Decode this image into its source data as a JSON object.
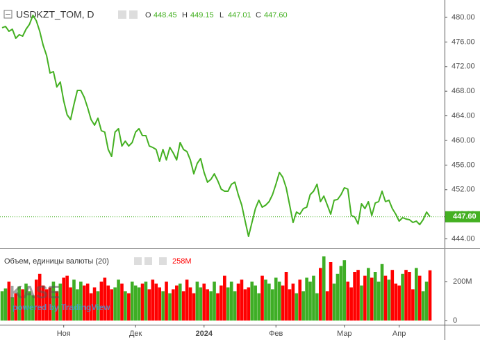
{
  "chart_data": [
    {
      "type": "line",
      "title": "USDKZT_TOM, D",
      "ohlc_labels": [
        "O",
        "H",
        "L",
        "C"
      ],
      "ohlc_values": [
        448.45,
        449.15,
        447.01,
        447.6
      ],
      "ohlc_value_labels": [
        "448.45",
        "449.15",
        "447.01",
        "447.60"
      ],
      "color": "#44b022",
      "values": [
        478.31,
        478.53,
        477.74,
        478.08,
        476.61,
        477.18,
        476.95,
        478.08,
        478.87,
        480.34,
        479.44,
        477.74,
        475.48,
        473.79,
        470.96,
        471.19,
        468.7,
        469.49,
        466.44,
        464.18,
        463.39,
        465.88,
        468.14,
        468.14,
        467.01,
        465.31,
        463.39,
        462.49,
        463.62,
        461.58,
        461.36,
        458.53,
        457.4,
        461.36,
        461.92,
        459.1,
        459.89,
        459.1,
        459.66,
        461.36,
        461.92,
        460.79,
        460.79,
        459.1,
        458.87,
        458.53,
        456.61,
        458.53,
        456.84,
        458.87,
        457.97,
        456.84,
        459.66,
        458.53,
        458.19,
        456.84,
        454.58,
        456.27,
        457.06,
        454.8,
        453.22,
        453.67,
        454.58,
        453.45,
        452.09,
        451.75,
        451.75,
        452.88,
        453.22,
        451.19,
        449.49,
        446.89,
        444.41,
        446.67,
        448.93,
        450.28,
        449.15,
        449.49,
        450.06,
        451.19,
        452.88,
        454.8,
        454.01,
        452.32,
        449.49,
        446.67,
        448.36,
        448.02,
        448.93,
        449.15,
        451.19,
        451.75,
        452.88,
        450.06,
        450.96,
        449.49,
        448.02,
        450.28,
        450.4,
        451.19,
        452.32,
        452.09,
        447.8,
        447.57,
        446.44,
        449.72,
        448.93,
        450.06,
        447.8,
        449.83,
        450.06,
        451.75,
        450.06,
        450.28,
        448.93,
        448.02,
        446.89,
        447.46,
        447.23,
        447.12,
        446.67,
        446.89,
        446.33,
        447.12,
        448.36,
        447.6
      ],
      "ylim": [
        442.71,
        481.92
      ],
      "yticks": [
        {
          "value": 444,
          "label": "444.00"
        },
        {
          "value": 448,
          "label": "448.00"
        },
        {
          "value": 452,
          "label": "452.00"
        },
        {
          "value": 456,
          "label": "456.00"
        },
        {
          "value": 460,
          "label": "460.00"
        },
        {
          "value": 464,
          "label": "464.00"
        },
        {
          "value": 468,
          "label": "468.00"
        },
        {
          "value": 472,
          "label": "472.00"
        },
        {
          "value": 476,
          "label": "476.00"
        },
        {
          "value": 480,
          "label": "480.00"
        }
      ],
      "xticks": [
        {
          "value": 18,
          "label": "Ноя"
        },
        {
          "value": 39,
          "label": "Дек"
        },
        {
          "value": 59,
          "label": "2024"
        },
        {
          "value": 80,
          "label": "Фев"
        },
        {
          "value": 100,
          "label": "Мар"
        },
        {
          "value": 116,
          "label": "Апр"
        }
      ]
    },
    {
      "type": "bar",
      "title": "Объем, единицы валюты (20)",
      "last_value_label": "258M",
      "up_color": "#3eae25",
      "down_color": "#ff0000",
      "values": [
        150,
        165,
        200,
        120,
        140,
        175,
        160,
        190,
        150,
        130,
        210,
        240,
        180,
        160,
        170,
        200,
        150,
        190,
        220,
        230,
        170,
        210,
        160,
        200,
        180,
        190,
        140,
        170,
        150,
        200,
        220,
        180,
        160,
        170,
        210,
        190,
        150,
        140,
        200,
        180,
        170,
        190,
        200,
        160,
        210,
        190,
        170,
        150,
        200,
        140,
        160,
        180,
        190,
        150,
        210,
        170,
        140,
        200,
        170,
        190,
        160,
        150,
        200,
        140,
        180,
        230,
        170,
        200,
        150,
        190,
        210,
        160,
        170,
        200,
        180,
        140,
        230,
        210,
        190,
        160,
        220,
        200,
        180,
        250,
        160,
        190,
        140,
        210,
        150,
        220,
        200,
        230,
        140,
        270,
        330,
        150,
        300,
        190,
        240,
        280,
        310,
        200,
        170,
        250,
        260,
        180,
        230,
        270,
        220,
        250,
        200,
        290,
        230,
        210,
        260,
        190,
        180,
        240,
        260,
        250,
        160,
        270,
        230,
        150,
        200,
        258
      ],
      "ylim": [
        0,
        350
      ],
      "yticks": [
        {
          "value": 0,
          "label": "0"
        },
        {
          "value": 200,
          "label": "200M"
        }
      ]
    }
  ],
  "watermark": {
    "logo": "KASE",
    "text": "powered by TradingView"
  }
}
